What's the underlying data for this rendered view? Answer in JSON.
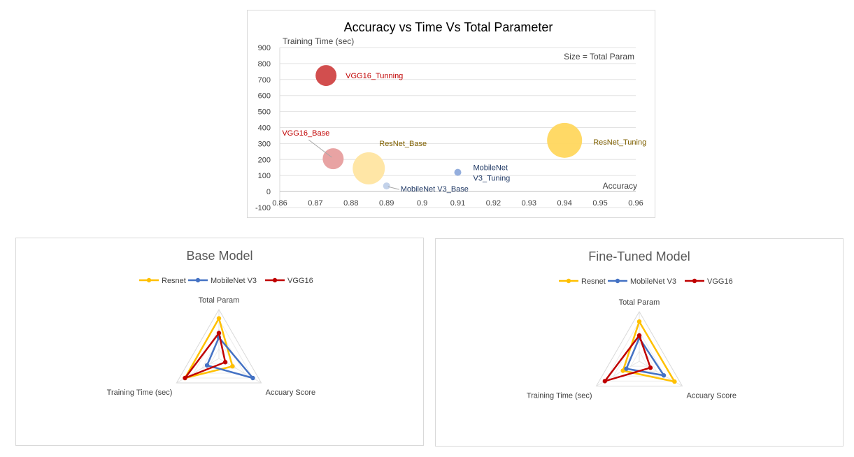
{
  "chart_data": [
    {
      "type": "scatter",
      "subtype": "bubble",
      "title": "Accuracy vs Time Vs Total Parameter",
      "xlabel": "Accuracy",
      "ylabel": "Training Time (sec)",
      "size_note": "Size = Total Param",
      "xlim": [
        0.86,
        0.96
      ],
      "ylim": [
        -100,
        900
      ],
      "x_ticks": [
        "0.86",
        "0.87",
        "0.88",
        "0.89",
        "0.9",
        "0.91",
        "0.92",
        "0.93",
        "0.94",
        "0.95",
        "0.96"
      ],
      "y_ticks": [
        "-100",
        "0",
        "100",
        "200",
        "300",
        "400",
        "500",
        "600",
        "700",
        "800",
        "900"
      ],
      "grid": "horizontal",
      "points": [
        {
          "name": "VGG16_Tunning",
          "label_lines": [
            "VGG16_Tunning"
          ],
          "x": 0.873,
          "y": 725,
          "size": 15,
          "color": "#d04545",
          "label_color": "#c00000"
        },
        {
          "name": "VGG16_Base",
          "label_lines": [
            "VGG16_Base"
          ],
          "x": 0.875,
          "y": 205,
          "size": 15,
          "color": "#e8a3a3",
          "label_color": "#c00000"
        },
        {
          "name": "ResNet_Base",
          "label_lines": [
            "ResNet_Base"
          ],
          "x": 0.885,
          "y": 145,
          "size": 23,
          "color": "#ffe6a6",
          "label_color": "#7f6000"
        },
        {
          "name": "MobileNet V3_Base",
          "label_lines": [
            "MobileNet V3_Base"
          ],
          "x": 0.89,
          "y": 35,
          "size": 5,
          "color": "#c3d2ea",
          "label_color": "#1f3864"
        },
        {
          "name": "MobileNet V3_Tuning",
          "label_lines": [
            "MobileNet",
            "V3_Tuning"
          ],
          "x": 0.91,
          "y": 120,
          "size": 5,
          "color": "#8eaadb",
          "label_color": "#1f3864"
        },
        {
          "name": "ResNet_Tuning",
          "label_lines": [
            "ResNet_Tuning"
          ],
          "x": 0.94,
          "y": 320,
          "size": 25,
          "color": "#ffd75e",
          "label_color": "#7f6000"
        }
      ]
    },
    {
      "type": "radar",
      "title": "Base Model",
      "axes": [
        "Total Param",
        "Accuary Score",
        "Training Time (sec)"
      ],
      "series": [
        {
          "name": "Resnet",
          "color": "#ffc000",
          "values": [
            0.82,
            0.32,
            0.8
          ]
        },
        {
          "name": "MobileNet V3",
          "color": "#4472c4",
          "values": [
            0.43,
            0.8,
            0.28
          ]
        },
        {
          "name": "VGG16",
          "color": "#c00000",
          "values": [
            0.52,
            0.15,
            0.8
          ]
        }
      ]
    },
    {
      "type": "radar",
      "title": "Fine-Tuned Model",
      "axes": [
        "Total Param",
        "Accuary Score",
        "Training Time (sec)"
      ],
      "series": [
        {
          "name": "Resnet",
          "color": "#ffc000",
          "values": [
            0.8,
            0.82,
            0.38
          ]
        },
        {
          "name": "MobileNet V3",
          "color": "#4472c4",
          "values": [
            0.47,
            0.57,
            0.3
          ]
        },
        {
          "name": "VGG16",
          "color": "#c00000",
          "values": [
            0.52,
            0.26,
            0.8
          ]
        }
      ]
    }
  ]
}
